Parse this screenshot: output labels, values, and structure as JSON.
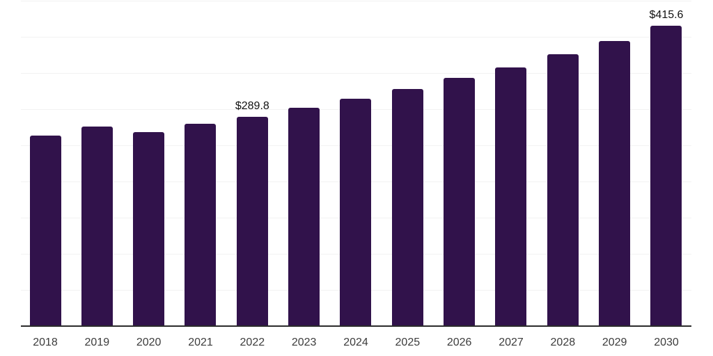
{
  "chart_data": {
    "type": "bar",
    "title": "",
    "xlabel": "",
    "ylabel": "",
    "categories": [
      "2018",
      "2019",
      "2020",
      "2021",
      "2022",
      "2023",
      "2024",
      "2025",
      "2026",
      "2027",
      "2028",
      "2029",
      "2030"
    ],
    "values": [
      263.5,
      276.0,
      268.5,
      280.0,
      289.8,
      302.0,
      314.0,
      327.5,
      343.0,
      358.0,
      376.0,
      394.5,
      415.6
    ],
    "annotations": [
      {
        "category": "2022",
        "index": 4,
        "label": "$289.8"
      },
      {
        "category": "2030",
        "index": 12,
        "label": "$415.6"
      }
    ],
    "ylim": [
      0,
      450
    ],
    "grid_step": 50,
    "grid": true,
    "legend": false,
    "colors": {
      "bar": "#31124B",
      "gridline": "#f2f2f2",
      "axis_line": "#2b2b2b",
      "tick_label": "#3c3c3c",
      "annotation": "#111111",
      "background": "#ffffff"
    }
  }
}
